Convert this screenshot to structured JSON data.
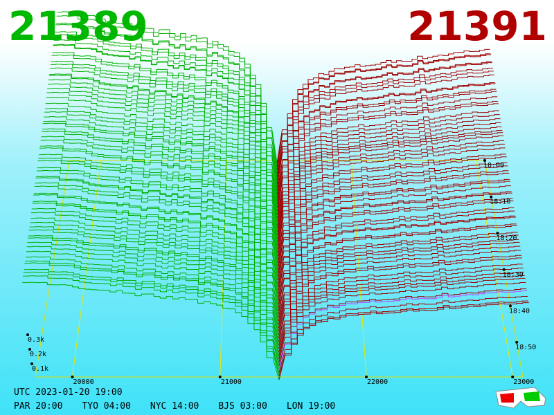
{
  "header": {
    "bid": "21389",
    "ask": "21391"
  },
  "price_axis": {
    "ticks": [
      "20000",
      "21000",
      "22000",
      "23000"
    ]
  },
  "time_axis": {
    "ticks": [
      "18:00",
      "18:10",
      "18:20",
      "18:30",
      "18:40",
      "18:50"
    ]
  },
  "depth_axis": {
    "ticks": [
      "0.3k",
      "0.2k",
      "0.1k"
    ]
  },
  "footer": {
    "utc": "UTC 2023-01-20 19:00",
    "zones": [
      "PAR 20:00",
      "TYO 04:00",
      "NYC 14:00",
      "BJS 03:00",
      "LON 19:00"
    ]
  }
}
